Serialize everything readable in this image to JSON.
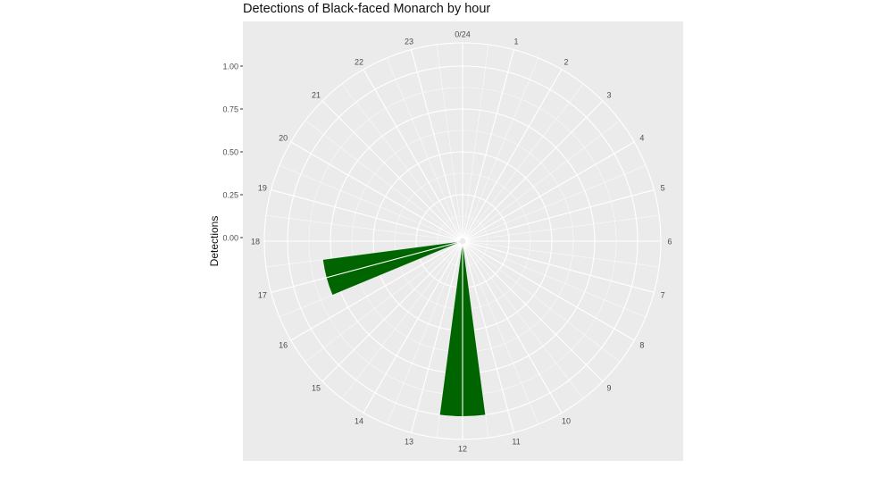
{
  "chart_data": {
    "type": "bar",
    "coord": "polar",
    "title": "Detections of Black-faced Monarch by hour",
    "ylabel": "Detections",
    "xlabel": "",
    "ylim": [
      0,
      1
    ],
    "y_ticks": [
      "0.00",
      "0.25",
      "0.50",
      "0.75",
      "1.00"
    ],
    "hour_labels": [
      "0/24",
      "1",
      "2",
      "3",
      "4",
      "5",
      "6",
      "7",
      "8",
      "9",
      "10",
      "11",
      "12",
      "13",
      "14",
      "15",
      "16",
      "17",
      "18",
      "19",
      "20",
      "21",
      "22",
      "23"
    ],
    "bars": [
      {
        "hour_start": 11.5,
        "hour_end": 12.5,
        "value": 1.0
      },
      {
        "hour_start": 16.5,
        "hour_end": 17.5,
        "value": 0.8
      }
    ],
    "colors": {
      "bar": "#006400",
      "panel": "#ebebeb",
      "grid": "#ffffff"
    },
    "grid": true
  }
}
